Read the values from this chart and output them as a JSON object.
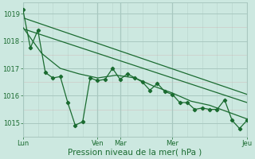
{
  "background_color": "#cce8e0",
  "grid_color_major": "#a8c8c0",
  "grid_color_minor": "#bcd8d0",
  "line_color": "#1a6b30",
  "xlabel": "Pression niveau de la mer( hPa )",
  "ylim": [
    1014.5,
    1019.4
  ],
  "yticks": [
    1015,
    1016,
    1017,
    1018,
    1019
  ],
  "xlim": [
    0,
    360
  ],
  "x_day_ticks": [
    0,
    120,
    156,
    240,
    360
  ],
  "x_day_labels": [
    "Lun",
    "Ven",
    "Mar",
    "Mer",
    "Jeu"
  ],
  "vlines_major": [
    0,
    120,
    156,
    240,
    360
  ],
  "series_main": {
    "x": [
      0,
      12,
      24,
      36,
      48,
      60,
      72,
      84,
      96,
      108,
      120,
      132,
      144,
      156,
      168,
      180,
      192,
      204,
      216,
      228,
      240,
      252,
      264,
      276,
      288,
      300,
      312,
      324,
      336,
      348,
      360
    ],
    "y": [
      1019.15,
      1017.75,
      1018.4,
      1016.85,
      1016.65,
      1016.7,
      1015.75,
      1014.92,
      1015.05,
      1016.65,
      1016.55,
      1016.6,
      1017.0,
      1016.6,
      1016.8,
      1016.65,
      1016.5,
      1016.2,
      1016.45,
      1016.15,
      1016.05,
      1015.75,
      1015.75,
      1015.5,
      1015.55,
      1015.5,
      1015.5,
      1015.85,
      1015.1,
      1014.8,
      1015.1
    ]
  },
  "series_smooth": {
    "x": [
      0,
      30,
      60,
      90,
      120,
      150,
      180,
      210,
      240,
      270,
      300,
      330,
      360
    ],
    "y": [
      1018.5,
      1017.55,
      1017.0,
      1016.8,
      1016.65,
      1016.75,
      1016.65,
      1016.35,
      1016.1,
      1015.8,
      1015.65,
      1015.4,
      1015.15
    ]
  },
  "trend1": {
    "x": [
      0,
      360
    ],
    "y": [
      1018.85,
      1016.05
    ]
  },
  "trend2": {
    "x": [
      0,
      360
    ],
    "y": [
      1018.45,
      1015.75
    ]
  },
  "minor_vlines_step": 24,
  "xlabel_fontsize": 7.5,
  "tick_fontsize": 6.0
}
